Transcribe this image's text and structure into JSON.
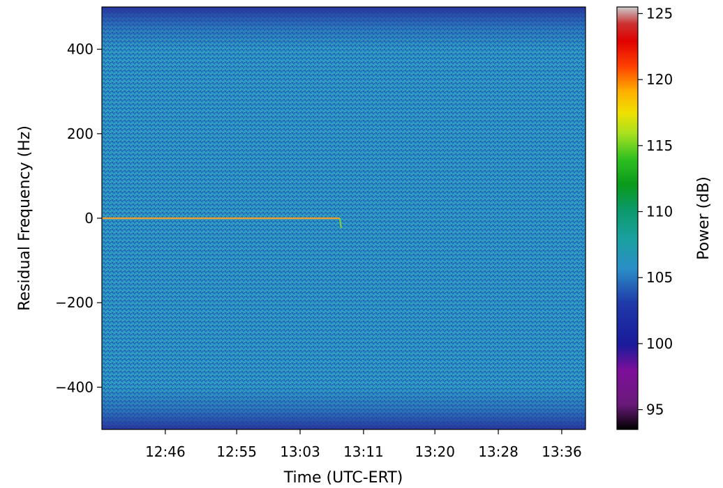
{
  "chart_data": {
    "type": "heatmap",
    "title": "",
    "xlabel": "Time (UTC-ERT)",
    "ylabel": "Residual Frequency (Hz)",
    "x_tick_labels": [
      "12:46",
      "12:55",
      "13:03",
      "13:11",
      "13:20",
      "13:28",
      "13:36"
    ],
    "y_ticks": [
      400,
      200,
      0,
      -200,
      -400
    ],
    "y_tick_labels": [
      "400",
      "200",
      "0",
      "−200",
      "−400"
    ],
    "ylim": [
      -500,
      500
    ],
    "xlim": [
      "12:38",
      "13:39"
    ],
    "colorbar": {
      "label": "Power (dB)",
      "ticks": [
        125,
        120,
        115,
        110,
        105,
        100,
        95
      ],
      "tick_labels": [
        "125",
        "120",
        "115",
        "110",
        "105",
        "100",
        "95"
      ],
      "range": [
        93.5,
        125.5
      ],
      "colormap": "nipy_spectral"
    },
    "background_power_db": 103,
    "edge_power_db": 100,
    "signal": {
      "frequency_hz": 0,
      "start_time": "12:38",
      "end_time": "13:08",
      "power_db": 118,
      "color": "#e8a030"
    }
  }
}
